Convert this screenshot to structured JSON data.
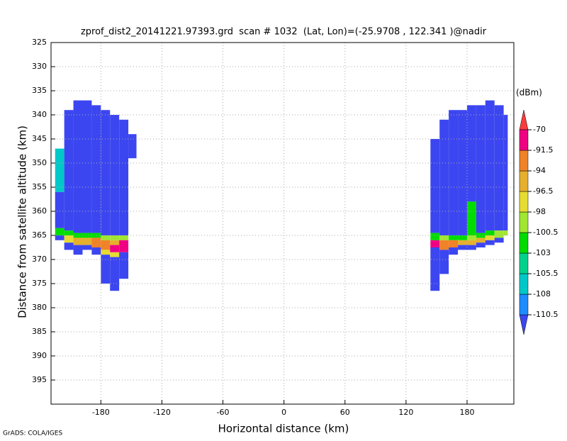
{
  "chart_data": {
    "type": "heatmap",
    "title": "zprof_dist2_20141221.97393.grd  scan # 1032  (Lat, Lon)=(-25.9708 , 122.341 )@nadir",
    "xlabel": "Horizontal distance (km)",
    "ylabel": "Distance from satellite altitude (km)",
    "footer": "GrADS: COLA/IGES",
    "colorbar_unit": "(dBm)",
    "xlim": [
      -229,
      226
    ],
    "xticks": [
      -180,
      -120,
      -60,
      0,
      60,
      120,
      180
    ],
    "ylim": [
      325,
      400
    ],
    "yticks": [
      325,
      330,
      335,
      340,
      345,
      350,
      355,
      360,
      365,
      370,
      375,
      380,
      385,
      390,
      395
    ],
    "y_reversed": true,
    "grid": true,
    "levels": [
      -110.5,
      -108,
      -105.5,
      -103,
      -100.5,
      -98,
      -96.5,
      -94,
      -91.5,
      -70
    ],
    "colors": [
      "#3c46f0",
      "#1e8cff",
      "#00c8c8",
      "#00d28c",
      "#00dc00",
      "#a0e632",
      "#e6dc32",
      "#e6af2d",
      "#f08228",
      "#f00082",
      "#fa3c3c"
    ],
    "columns": [
      {
        "x": [
          -225,
          -216
        ],
        "layers": [
          [
            347,
            356,
            -107
          ],
          [
            356,
            363.5,
            -112
          ],
          [
            363.5,
            365,
            -103
          ],
          [
            365,
            366,
            -112
          ]
        ]
      },
      {
        "x": [
          -216,
          -207
        ],
        "layers": [
          [
            339,
            364,
            -112
          ],
          [
            364,
            365,
            -102
          ],
          [
            365,
            366.5,
            -97
          ],
          [
            366.5,
            368,
            -112
          ]
        ]
      },
      {
        "x": [
          -207,
          -198
        ],
        "layers": [
          [
            337,
            364.5,
            -112
          ],
          [
            364.5,
            365.5,
            -102
          ],
          [
            365.5,
            367,
            -95
          ],
          [
            367,
            369,
            -112
          ]
        ]
      },
      {
        "x": [
          -198,
          -189
        ],
        "layers": [
          [
            337,
            364.5,
            -112
          ],
          [
            364.5,
            365.5,
            -101
          ],
          [
            365.5,
            367,
            -95
          ],
          [
            367,
            368,
            -112
          ]
        ]
      },
      {
        "x": [
          -189,
          -180
        ],
        "layers": [
          [
            338,
            364.5,
            -112
          ],
          [
            364.5,
            365.5,
            -101
          ],
          [
            365.5,
            367.5,
            -94
          ],
          [
            367.5,
            369,
            -112
          ]
        ]
      },
      {
        "x": [
          -180,
          -171
        ],
        "layers": [
          [
            339,
            365,
            -112
          ],
          [
            365,
            366,
            -99
          ],
          [
            366,
            368,
            -93
          ],
          [
            368,
            369,
            -97
          ],
          [
            369,
            375,
            -112
          ]
        ]
      },
      {
        "x": [
          -171,
          -162
        ],
        "layers": [
          [
            340,
            365,
            -112
          ],
          [
            365,
            366,
            -100
          ],
          [
            366,
            367,
            -95
          ],
          [
            367,
            368.5,
            -80
          ],
          [
            368.5,
            369.5,
            -97
          ],
          [
            369.5,
            376.5,
            -112
          ]
        ]
      },
      {
        "x": [
          -162,
          -153
        ],
        "layers": [
          [
            341,
            365,
            -112
          ],
          [
            365,
            366,
            -100
          ],
          [
            366,
            368.5,
            -80
          ],
          [
            368.5,
            374,
            -112
          ]
        ]
      },
      {
        "x": [
          -153,
          -145
        ],
        "layers": [
          [
            344,
            349,
            -112
          ]
        ]
      },
      {
        "x": [
          144,
          153
        ],
        "layers": [
          [
            345,
            364.5,
            -112
          ],
          [
            364.5,
            366,
            -101
          ],
          [
            366,
            367.5,
            -80
          ],
          [
            367.5,
            376.5,
            -112
          ]
        ]
      },
      {
        "x": [
          153,
          162
        ],
        "layers": [
          [
            341,
            365,
            -112
          ],
          [
            365,
            366,
            -100
          ],
          [
            366,
            368,
            -93
          ],
          [
            368,
            373,
            -112
          ]
        ]
      },
      {
        "x": [
          162,
          171
        ],
        "layers": [
          [
            339,
            365,
            -112
          ],
          [
            365,
            366,
            -101
          ],
          [
            366,
            367.5,
            -94
          ],
          [
            367.5,
            369,
            -112
          ]
        ]
      },
      {
        "x": [
          171,
          180
        ],
        "layers": [
          [
            339,
            365,
            -112
          ],
          [
            365,
            366,
            -101
          ],
          [
            366,
            367,
            -95
          ],
          [
            367,
            368,
            -112
          ]
        ]
      },
      {
        "x": [
          180,
          189
        ],
        "layers": [
          [
            338,
            358,
            -112
          ],
          [
            358,
            365,
            -102
          ],
          [
            365,
            366,
            -99
          ],
          [
            366,
            367,
            -95
          ],
          [
            367,
            368,
            -112
          ]
        ]
      },
      {
        "x": [
          189,
          198
        ],
        "layers": [
          [
            338,
            364.5,
            -112
          ],
          [
            364.5,
            365.5,
            -101
          ],
          [
            365.5,
            366.5,
            -96
          ],
          [
            366.5,
            367.5,
            -112
          ]
        ]
      },
      {
        "x": [
          198,
          207
        ],
        "layers": [
          [
            337,
            364,
            -112
          ],
          [
            364,
            365,
            -101
          ],
          [
            365,
            366,
            -97
          ],
          [
            366,
            367,
            -112
          ]
        ]
      },
      {
        "x": [
          207,
          216
        ],
        "layers": [
          [
            338,
            364,
            -112
          ],
          [
            364,
            365.5,
            -99
          ],
          [
            365.5,
            366.5,
            -112
          ]
        ]
      },
      {
        "x": [
          216,
          220
        ],
        "layers": [
          [
            340,
            364,
            -112
          ],
          [
            364,
            365,
            -99
          ]
        ]
      }
    ]
  }
}
